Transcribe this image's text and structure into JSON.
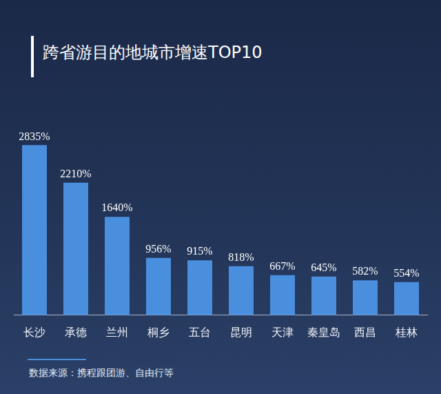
{
  "chart_data": {
    "type": "bar",
    "title": "跨省游目的地城市增速TOP10",
    "categories": [
      "长沙",
      "承德",
      "兰州",
      "桐乡",
      "五台",
      "昆明",
      "天津",
      "秦皇岛",
      "西昌",
      "桂林"
    ],
    "values": [
      2835,
      2210,
      1640,
      956,
      915,
      818,
      667,
      645,
      582,
      554
    ],
    "value_labels": [
      "2835%",
      "2210%",
      "1640%",
      "956%",
      "915%",
      "818%",
      "667%",
      "645%",
      "582%",
      "554%"
    ],
    "color": "#4a8ede",
    "ylim": [
      0,
      3000
    ],
    "grid": false,
    "data_labels": true,
    "tick_labels": "x",
    "source": "数据来源：携程跟团游、自由行等"
  }
}
